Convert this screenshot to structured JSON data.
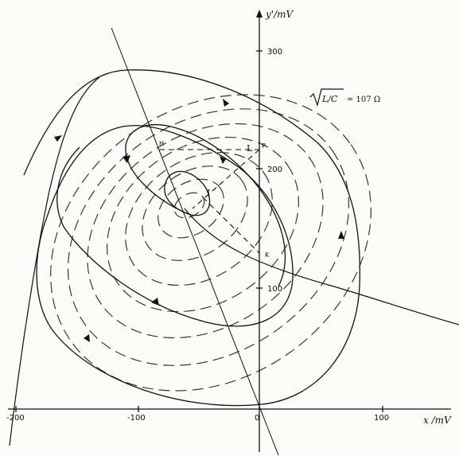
{
  "axes": {
    "x_label": "x /mV",
    "y_label": "y'/mV",
    "x_ticks": [
      "-200",
      "-100",
      "0",
      "100"
    ],
    "y_ticks": [
      "100",
      "200",
      "300"
    ]
  },
  "formula": {
    "radical": "L/C",
    "value": "= 107 Ω"
  },
  "points": {
    "H": "H",
    "P": "P",
    "K": "K",
    "L": "L",
    "I": "I"
  }
}
